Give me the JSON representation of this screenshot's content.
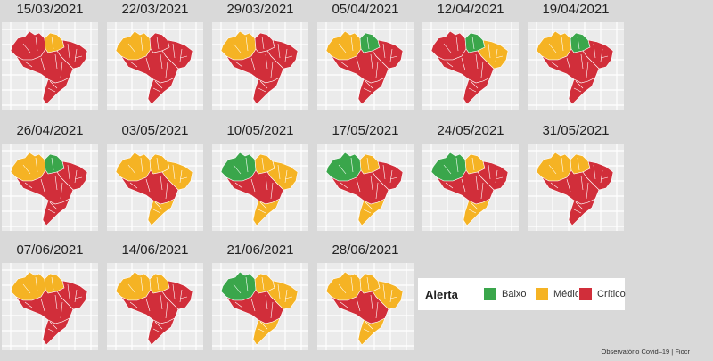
{
  "legend": {
    "title": "Alerta",
    "items": [
      {
        "label": "Baixo",
        "color": "#3aa64b"
      },
      {
        "label": "Médio",
        "color": "#f5b324"
      },
      {
        "label": "Crítico",
        "color": "#d12e3a"
      }
    ]
  },
  "credit": "Observatório Covid–19 | Fiocr",
  "colors": {
    "background": "#d9d9d9",
    "panel": "#ebebeb",
    "grid": "#ffffff",
    "border": "#ffffff"
  },
  "maps": [
    {
      "date": "15/03/2021",
      "north_west": "critico",
      "north_east": "medio",
      "center": "critico",
      "south": "critico",
      "northeast_region": "critico"
    },
    {
      "date": "22/03/2021",
      "north_west": "medio",
      "north_east": "critico",
      "center": "critico",
      "south": "critico",
      "northeast_region": "critico"
    },
    {
      "date": "29/03/2021",
      "north_west": "medio",
      "north_east": "critico",
      "center": "critico",
      "south": "critico",
      "northeast_region": "critico"
    },
    {
      "date": "05/04/2021",
      "north_west": "medio",
      "north_east": "baixo",
      "center": "critico",
      "south": "critico",
      "northeast_region": "critico"
    },
    {
      "date": "12/04/2021",
      "north_west": "critico",
      "north_east": "baixo",
      "center": "critico",
      "south": "critico",
      "northeast_region": "medio"
    },
    {
      "date": "19/04/2021",
      "north_west": "medio",
      "north_east": "baixo",
      "center": "critico",
      "south": "critico",
      "northeast_region": "critico"
    },
    {
      "date": "26/04/2021",
      "north_west": "medio",
      "north_east": "baixo",
      "center": "critico",
      "south": "critico",
      "northeast_region": "critico"
    },
    {
      "date": "03/05/2021",
      "north_west": "medio",
      "north_east": "medio",
      "center": "critico",
      "south": "medio",
      "northeast_region": "medio"
    },
    {
      "date": "10/05/2021",
      "north_west": "baixo",
      "north_east": "medio",
      "center": "critico",
      "south": "medio",
      "northeast_region": "medio"
    },
    {
      "date": "17/05/2021",
      "north_west": "baixo",
      "north_east": "medio",
      "center": "critico",
      "south": "medio",
      "northeast_region": "critico"
    },
    {
      "date": "24/05/2021",
      "north_west": "baixo",
      "north_east": "medio",
      "center": "critico",
      "south": "medio",
      "northeast_region": "critico"
    },
    {
      "date": "31/05/2021",
      "north_west": "medio",
      "north_east": "medio",
      "center": "critico",
      "south": "critico",
      "northeast_region": "critico"
    },
    {
      "date": "07/06/2021",
      "north_west": "medio",
      "north_east": "medio",
      "center": "critico",
      "south": "critico",
      "northeast_region": "critico"
    },
    {
      "date": "14/06/2021",
      "north_west": "medio",
      "north_east": "medio",
      "center": "critico",
      "south": "critico",
      "northeast_region": "critico"
    },
    {
      "date": "21/06/2021",
      "north_west": "baixo",
      "north_east": "medio",
      "center": "critico",
      "south": "medio",
      "northeast_region": "medio"
    },
    {
      "date": "28/06/2021",
      "north_west": "medio",
      "north_east": "medio",
      "center": "critico",
      "south": "medio",
      "northeast_region": "medio"
    }
  ]
}
